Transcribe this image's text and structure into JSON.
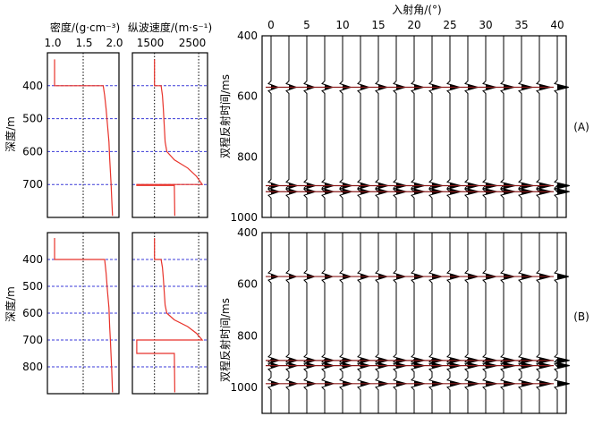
{
  "density_panel": {
    "title": "密度/(g·cm⁻³)",
    "xticks": [
      "1.0",
      "1.5",
      "2.0"
    ],
    "xlim": [
      1.0,
      2.0
    ]
  },
  "velocity_panel": {
    "title": "纵波速度/(m·s⁻¹)",
    "xticks": [
      "1500",
      "2500"
    ],
    "xlim": [
      1000,
      2700
    ]
  },
  "gather_panel": {
    "title": "入射角/(°)",
    "xticks": [
      "0",
      "5",
      "10",
      "15",
      "20",
      "25",
      "30",
      "35",
      "40"
    ]
  },
  "depth_label": "深度/m",
  "time_label": "双程反射时间/ms",
  "panel_labels": [
    "(A)",
    "(B)"
  ],
  "colors": {
    "model_curve": "#e8322a",
    "marker_line": "#3a3ad8",
    "trace": "#000000",
    "event_core": "#8a1a1a"
  },
  "chart_data": [
    {
      "id": "A-density",
      "type": "line",
      "ylabel": "深度/m",
      "ylim": [
        300,
        800
      ],
      "xlim": [
        1.0,
        2.0
      ],
      "yticks": [
        400,
        500,
        600,
        700
      ],
      "depth_markers": [
        400,
        500,
        600,
        700
      ],
      "x": [
        1.1,
        1.1,
        1.78,
        1.8,
        1.82,
        1.84,
        1.86,
        1.87,
        1.88,
        1.89,
        1.9,
        1.91
      ],
      "y": [
        320,
        400,
        400,
        430,
        470,
        520,
        570,
        620,
        660,
        700,
        750,
        795
      ]
    },
    {
      "id": "A-velocity",
      "type": "line",
      "ylim": [
        300,
        800
      ],
      "xlim": [
        1000,
        2700
      ],
      "xticks": [
        1500,
        2500
      ],
      "depth_markers": [
        400,
        500,
        600,
        700
      ],
      "x": [
        1500,
        1500,
        1650,
        1680,
        1700,
        1720,
        1740,
        1780,
        1950,
        2250,
        2450,
        2580,
        1100,
        1100,
        1950,
        1960
      ],
      "y": [
        320,
        400,
        400,
        430,
        470,
        520,
        570,
        600,
        625,
        650,
        675,
        700,
        700,
        703,
        703,
        795
      ]
    },
    {
      "id": "A-gather",
      "type": "line",
      "title": "入射角/(°)",
      "ylabel": "双程反射时间/ms",
      "ylim": [
        400,
        1000
      ],
      "yticks": [
        400,
        600,
        800,
        1000
      ],
      "x": [
        0,
        2.5,
        5,
        7.5,
        10,
        12.5,
        15,
        17.5,
        20,
        22.5,
        25,
        27.5,
        30,
        32.5,
        35,
        37.5,
        40
      ],
      "events_ms": [
        570,
        895,
        915
      ]
    },
    {
      "id": "B-density",
      "type": "line",
      "ylabel": "深度/m",
      "ylim": [
        300,
        900
      ],
      "xlim": [
        1.0,
        2.0
      ],
      "yticks": [
        400,
        500,
        600,
        700,
        800
      ],
      "depth_markers": [
        400,
        500,
        600,
        700,
        800
      ],
      "x": [
        1.1,
        1.1,
        1.8,
        1.82,
        1.84,
        1.86,
        1.87,
        1.88,
        1.89,
        1.9,
        1.91
      ],
      "y": [
        320,
        400,
        400,
        450,
        520,
        580,
        650,
        700,
        760,
        820,
        895
      ]
    },
    {
      "id": "B-velocity",
      "type": "line",
      "ylim": [
        300,
        900
      ],
      "xlim": [
        1000,
        2700
      ],
      "xticks": [
        1500,
        2500
      ],
      "depth_markers": [
        400,
        500,
        600,
        700,
        800
      ],
      "x": [
        1500,
        1500,
        1650,
        1680,
        1700,
        1720,
        1740,
        1780,
        1950,
        2250,
        2450,
        2580,
        1100,
        1100,
        1400,
        1400,
        1950,
        1960
      ],
      "y": [
        320,
        400,
        400,
        430,
        470,
        520,
        570,
        600,
        625,
        650,
        675,
        700,
        700,
        750,
        750,
        750,
        750,
        895
      ]
    },
    {
      "id": "B-gather",
      "type": "line",
      "ylabel": "双程反射时间/ms",
      "ylim": [
        400,
        1100
      ],
      "yticks": [
        400,
        600,
        800,
        1000
      ],
      "x": [
        0,
        2.5,
        5,
        7.5,
        10,
        12.5,
        15,
        17.5,
        20,
        22.5,
        25,
        27.5,
        30,
        32.5,
        35,
        37.5,
        40
      ],
      "events_ms": [
        570,
        895,
        915,
        985
      ]
    }
  ]
}
